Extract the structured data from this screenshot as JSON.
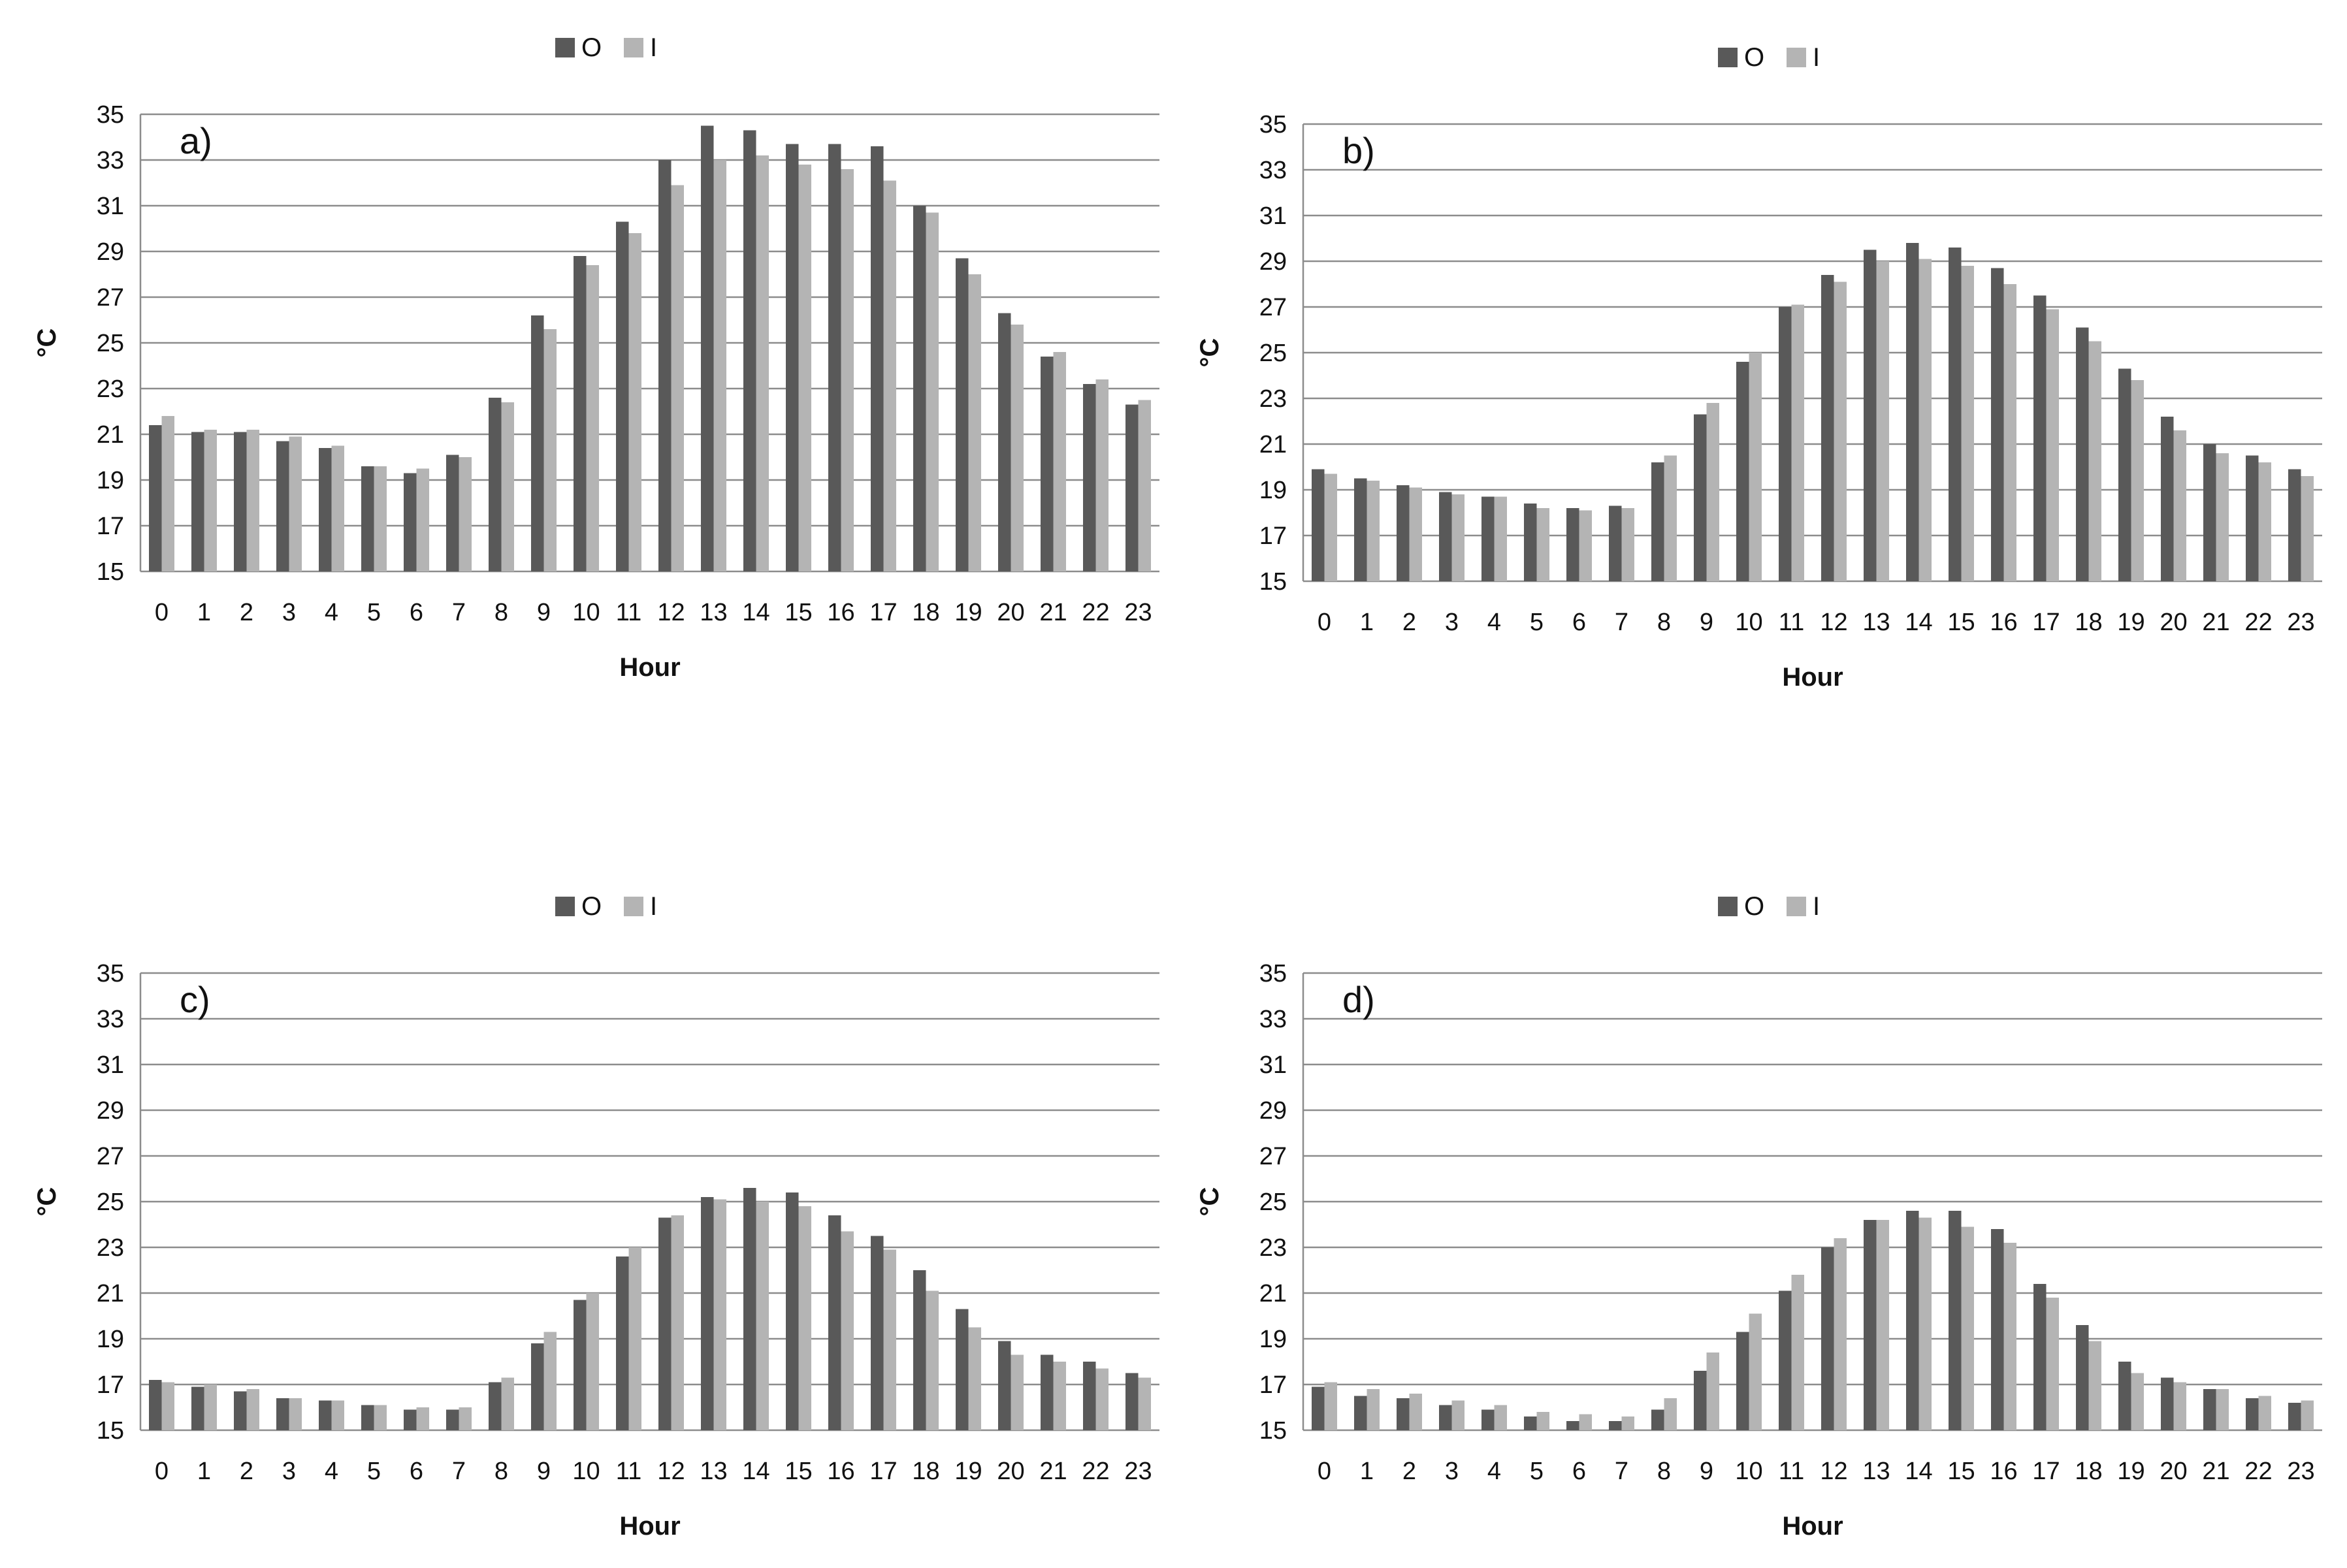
{
  "series_colors": {
    "O": "#595959",
    "I": "#b4b4b4"
  },
  "chart_data": [
    {
      "type": "bar",
      "panel_label": "a)",
      "xlabel": "Hour",
      "ylabel": "°C",
      "legend": [
        "O",
        "I"
      ],
      "legend_position": "top-center",
      "grid": true,
      "ylim": [
        15,
        35
      ],
      "yticks": [
        15,
        17,
        19,
        21,
        23,
        25,
        27,
        29,
        31,
        33,
        35
      ],
      "categories": [
        "0",
        "1",
        "2",
        "3",
        "4",
        "5",
        "6",
        "7",
        "8",
        "9",
        "10",
        "11",
        "12",
        "13",
        "14",
        "15",
        "16",
        "17",
        "18",
        "19",
        "20",
        "21",
        "22",
        "23"
      ],
      "series": [
        {
          "name": "O",
          "values": [
            21.4,
            21.1,
            21.1,
            20.7,
            20.4,
            19.6,
            19.3,
            20.1,
            22.6,
            26.2,
            28.8,
            30.3,
            33.0,
            34.5,
            34.3,
            33.7,
            33.7,
            33.6,
            31.0,
            28.7,
            26.3,
            24.4,
            23.2,
            22.3
          ]
        },
        {
          "name": "I",
          "values": [
            21.8,
            21.2,
            21.2,
            20.9,
            20.5,
            19.6,
            19.5,
            20.0,
            22.4,
            25.6,
            28.4,
            29.8,
            31.9,
            33.0,
            33.2,
            32.8,
            32.6,
            32.1,
            30.7,
            28.0,
            25.8,
            24.6,
            23.4,
            22.5
          ]
        }
      ]
    },
    {
      "type": "bar",
      "panel_label": "b)",
      "xlabel": "Hour",
      "ylabel": "°C",
      "legend": [
        "O",
        "I"
      ],
      "legend_position": "top-center",
      "grid": true,
      "ylim": [
        15,
        35
      ],
      "yticks": [
        15,
        17,
        19,
        21,
        23,
        25,
        27,
        29,
        31,
        33,
        35
      ],
      "categories": [
        "0",
        "1",
        "2",
        "3",
        "4",
        "5",
        "6",
        "7",
        "8",
        "9",
        "10",
        "11",
        "12",
        "13",
        "14",
        "15",
        "16",
        "17",
        "18",
        "19",
        "20",
        "21",
        "22",
        "23"
      ],
      "series": [
        {
          "name": "O",
          "values": [
            19.9,
            19.5,
            19.2,
            18.9,
            18.7,
            18.4,
            18.2,
            18.3,
            20.2,
            22.3,
            24.6,
            27.0,
            28.4,
            29.5,
            29.8,
            29.6,
            28.7,
            27.5,
            26.1,
            24.3,
            22.2,
            21.0,
            20.5,
            19.9
          ]
        },
        {
          "name": "I",
          "values": [
            19.7,
            19.4,
            19.1,
            18.8,
            18.7,
            18.2,
            18.1,
            18.2,
            20.5,
            22.8,
            25.0,
            27.1,
            28.1,
            29.0,
            29.1,
            28.8,
            28.0,
            26.9,
            25.5,
            23.8,
            21.6,
            20.6,
            20.2,
            19.6
          ]
        }
      ]
    },
    {
      "type": "bar",
      "panel_label": "c)",
      "xlabel": "Hour",
      "ylabel": "°C",
      "legend": [
        "O",
        "I"
      ],
      "legend_position": "top-center",
      "grid": true,
      "ylim": [
        15,
        35
      ],
      "yticks": [
        15,
        17,
        19,
        21,
        23,
        25,
        27,
        29,
        31,
        33,
        35
      ],
      "categories": [
        "0",
        "1",
        "2",
        "3",
        "4",
        "5",
        "6",
        "7",
        "8",
        "9",
        "10",
        "11",
        "12",
        "13",
        "14",
        "15",
        "16",
        "17",
        "18",
        "19",
        "20",
        "21",
        "22",
        "23"
      ],
      "series": [
        {
          "name": "O",
          "values": [
            17.2,
            16.9,
            16.7,
            16.4,
            16.3,
            16.1,
            15.9,
            15.9,
            17.1,
            18.8,
            20.7,
            22.6,
            24.3,
            25.2,
            25.6,
            25.4,
            24.4,
            23.5,
            22.0,
            20.3,
            18.9,
            18.3,
            18.0,
            17.5
          ]
        },
        {
          "name": "I",
          "values": [
            17.1,
            17.0,
            16.8,
            16.4,
            16.3,
            16.1,
            16.0,
            16.0,
            17.3,
            19.3,
            21.0,
            23.0,
            24.4,
            25.1,
            25.0,
            24.8,
            23.7,
            22.9,
            21.1,
            19.5,
            18.3,
            18.0,
            17.7,
            17.3
          ]
        }
      ]
    },
    {
      "type": "bar",
      "panel_label": "d)",
      "xlabel": "Hour",
      "ylabel": "°C",
      "legend": [
        "O",
        "I"
      ],
      "legend_position": "top-center",
      "grid": true,
      "ylim": [
        15,
        35
      ],
      "yticks": [
        15,
        17,
        19,
        21,
        23,
        25,
        27,
        29,
        31,
        33,
        35
      ],
      "categories": [
        "0",
        "1",
        "2",
        "3",
        "4",
        "5",
        "6",
        "7",
        "8",
        "9",
        "10",
        "11",
        "12",
        "13",
        "14",
        "15",
        "16",
        "17",
        "18",
        "19",
        "20",
        "21",
        "22",
        "23"
      ],
      "series": [
        {
          "name": "O",
          "values": [
            16.9,
            16.5,
            16.4,
            16.1,
            15.9,
            15.6,
            15.4,
            15.4,
            15.9,
            17.6,
            19.3,
            21.1,
            23.0,
            24.2,
            24.6,
            24.6,
            23.8,
            21.4,
            19.6,
            18.0,
            17.3,
            16.8,
            16.4,
            16.2
          ]
        },
        {
          "name": "I",
          "values": [
            17.1,
            16.8,
            16.6,
            16.3,
            16.1,
            15.8,
            15.7,
            15.6,
            16.4,
            18.4,
            20.1,
            21.8,
            23.4,
            24.2,
            24.3,
            23.9,
            23.2,
            20.8,
            18.9,
            17.5,
            17.1,
            16.8,
            16.5,
            16.3
          ]
        }
      ]
    }
  ]
}
